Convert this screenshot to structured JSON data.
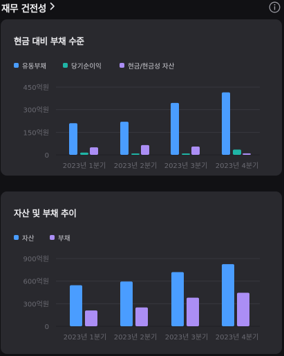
{
  "header": {
    "title": "재무 건전성",
    "chevron_icon": "chevron-right-icon",
    "info_icon": "info-circle-icon"
  },
  "colors": {
    "background": "#111114",
    "card": "#29292e",
    "blue": "#4a9dff",
    "teal": "#1fb5a6",
    "purple": "#ab8ef5",
    "tick_text": "#6a6a72",
    "grid": "#38383e"
  },
  "chart_data": [
    {
      "type": "bar",
      "title": "현금 대비 부채 수준",
      "categories": [
        "2023년 1분기",
        "2023년 2분기",
        "2023년 3분기",
        "2023년 4분기"
      ],
      "series": [
        {
          "name": "유동부채",
          "color": "#4a9dff",
          "values": [
            210,
            220,
            345,
            415
          ]
        },
        {
          "name": "당기순이익",
          "color": "#1fb5a6",
          "values": [
            15,
            3,
            5,
            35
          ]
        },
        {
          "name": "현금/현금성 자산",
          "color": "#ab8ef5",
          "values": [
            50,
            65,
            55,
            10
          ]
        }
      ],
      "ylim": [
        0,
        450
      ],
      "yticks": [
        0,
        150,
        300,
        450
      ],
      "ytick_labels": [
        "0",
        "150억원",
        "300억원",
        "450억원"
      ],
      "legend_position": "top-left",
      "grid": true
    },
    {
      "type": "bar",
      "title": "자산 및 부채 추이",
      "categories": [
        "2023년 1분기",
        "2023년 2분기",
        "2023년 3분기",
        "2023년 4분기"
      ],
      "series": [
        {
          "name": "자산",
          "color": "#4a9dff",
          "values": [
            545,
            595,
            720,
            825
          ]
        },
        {
          "name": "부채",
          "color": "#ab8ef5",
          "values": [
            210,
            250,
            380,
            445
          ]
        }
      ],
      "ylim": [
        0,
        900
      ],
      "yticks": [
        0,
        300,
        600,
        900
      ],
      "ytick_labels": [
        "0",
        "300억원",
        "600억원",
        "900억원"
      ],
      "legend_position": "top-left",
      "grid": true
    }
  ]
}
